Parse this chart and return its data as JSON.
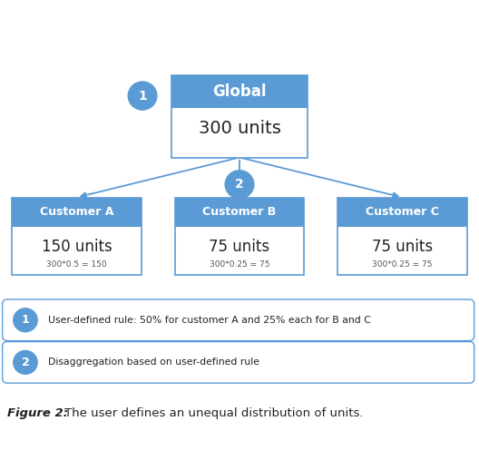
{
  "bg_color": "#ffffff",
  "blue": "#5b9bd5",
  "white": "#ffffff",
  "dark_text": "#222222",
  "formula_color": "#555555",
  "global_header": "Global",
  "global_value": "300 units",
  "customers": [
    "Customer A",
    "Customer B",
    "Customer C"
  ],
  "customer_values": [
    "150 units",
    "75 units",
    "75 units"
  ],
  "customer_formulas": [
    "300*0.5 = 150",
    "300*0.25 = 75",
    "300*0.25 = 75"
  ],
  "legend1_circle": "1",
  "legend1_text": "User-defined rule: 50% for customer A and 25% each for B and C",
  "legend2_circle": "2",
  "legend2_text": "Disaggregation based on user-defined rule",
  "figure_label": "Figure 2:",
  "figure_caption": " The user defines an unequal distribution of units.",
  "circle1_label": "1",
  "circle2_label": "2",
  "figw": 5.28,
  "figh": 5.18,
  "dpi": 100
}
